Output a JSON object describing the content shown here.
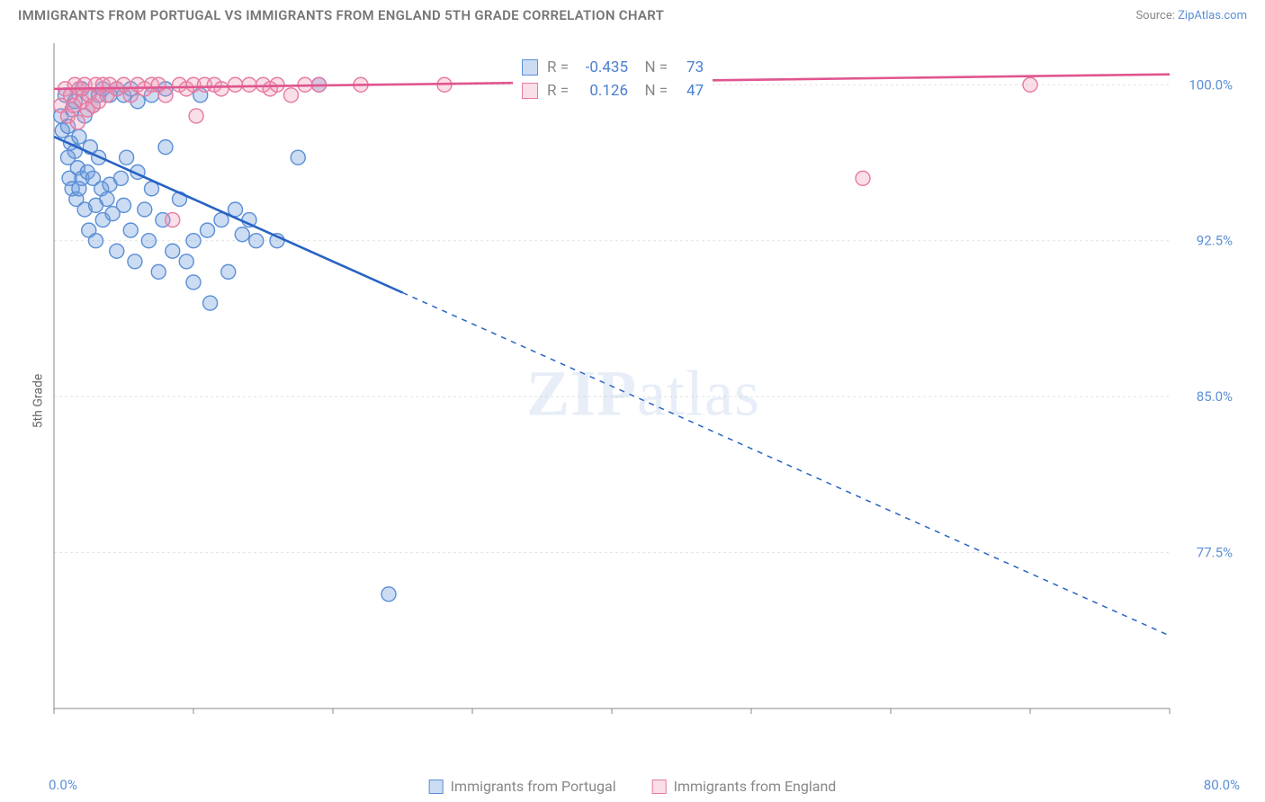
{
  "title": "IMMIGRANTS FROM PORTUGAL VS IMMIGRANTS FROM ENGLAND 5TH GRADE CORRELATION CHART",
  "source_label": "Source:",
  "source_site": "ZipAtlas.com",
  "ylabel": "5th Grade",
  "watermark": "ZIPatlas",
  "chart": {
    "type": "scatter-with-regression",
    "background_color": "#ffffff",
    "grid_color": "#e3e3e3",
    "axis_color": "#888888",
    "axis_label_color": "#5b8fd6",
    "xlim": [
      0,
      80
    ],
    "ylim": [
      70,
      102
    ],
    "xticks": [
      0,
      10,
      20,
      30,
      40,
      50,
      60,
      70,
      80
    ],
    "yticks": [
      77.5,
      85.0,
      92.5,
      100.0
    ],
    "xtick_labels_shown": {
      "0": "0.0%",
      "80": "80.0%"
    },
    "ytick_labels": [
      "77.5%",
      "85.0%",
      "92.5%",
      "100.0%"
    ],
    "marker_radius": 8,
    "marker_stroke_width": 1.4,
    "line_width": 2.6,
    "series": [
      {
        "name": "Immigrants from Portugal",
        "color_fill": "rgba(108,156,220,0.35)",
        "color_stroke": "#5b8fd6",
        "line_color": "#2763c4",
        "R": -0.435,
        "N": 73,
        "regression": {
          "x1": 0,
          "y1": 97.5,
          "x2_solid": 25,
          "y2_solid": 90,
          "x2": 80,
          "y2": 73.5
        },
        "points": [
          [
            0.5,
            98.5
          ],
          [
            0.6,
            97.8
          ],
          [
            0.8,
            99.5
          ],
          [
            1.0,
            98.0
          ],
          [
            1.0,
            96.5
          ],
          [
            1.1,
            95.5
          ],
          [
            1.2,
            97.2
          ],
          [
            1.3,
            95.0
          ],
          [
            1.3,
            98.8
          ],
          [
            1.5,
            96.8
          ],
          [
            1.5,
            99.2
          ],
          [
            1.6,
            94.5
          ],
          [
            1.7,
            96.0
          ],
          [
            1.8,
            95.0
          ],
          [
            1.8,
            97.5
          ],
          [
            2.0,
            99.8
          ],
          [
            2.0,
            95.5
          ],
          [
            2.2,
            94.0
          ],
          [
            2.2,
            98.5
          ],
          [
            2.4,
            95.8
          ],
          [
            2.5,
            99.5
          ],
          [
            2.5,
            93.0
          ],
          [
            2.6,
            97.0
          ],
          [
            2.8,
            95.5
          ],
          [
            2.8,
            99.0
          ],
          [
            3.0,
            94.2
          ],
          [
            3.0,
            92.5
          ],
          [
            3.2,
            96.5
          ],
          [
            3.2,
            99.5
          ],
          [
            3.4,
            95.0
          ],
          [
            3.5,
            93.5
          ],
          [
            3.5,
            99.8
          ],
          [
            3.8,
            94.5
          ],
          [
            4.0,
            95.2
          ],
          [
            4.0,
            99.5
          ],
          [
            4.2,
            93.8
          ],
          [
            4.5,
            92.0
          ],
          [
            4.5,
            99.8
          ],
          [
            4.8,
            95.5
          ],
          [
            5.0,
            94.2
          ],
          [
            5.0,
            99.5
          ],
          [
            5.2,
            96.5
          ],
          [
            5.5,
            93.0
          ],
          [
            5.5,
            99.8
          ],
          [
            5.8,
            91.5
          ],
          [
            6.0,
            95.8
          ],
          [
            6.0,
            99.2
          ],
          [
            6.5,
            94.0
          ],
          [
            6.8,
            92.5
          ],
          [
            7.0,
            95.0
          ],
          [
            7.0,
            99.5
          ],
          [
            7.5,
            91.0
          ],
          [
            7.8,
            93.5
          ],
          [
            8.0,
            97.0
          ],
          [
            8.0,
            99.8
          ],
          [
            8.5,
            92.0
          ],
          [
            9.0,
            94.5
          ],
          [
            9.5,
            91.5
          ],
          [
            10.0,
            92.5
          ],
          [
            10.0,
            90.5
          ],
          [
            10.5,
            99.5
          ],
          [
            11.0,
            93.0
          ],
          [
            11.2,
            89.5
          ],
          [
            12.0,
            93.5
          ],
          [
            12.5,
            91.0
          ],
          [
            13.0,
            94.0
          ],
          [
            13.5,
            92.8
          ],
          [
            14.0,
            93.5
          ],
          [
            14.5,
            92.5
          ],
          [
            16.0,
            92.5
          ],
          [
            17.5,
            96.5
          ],
          [
            19.0,
            100.0
          ],
          [
            24.0,
            75.5
          ]
        ]
      },
      {
        "name": "Immigrants from England",
        "color_fill": "rgba(240,150,180,0.30)",
        "color_stroke": "#e77aa0",
        "line_color": "#e05590",
        "R": 0.126,
        "N": 47,
        "regression": {
          "x1": 0,
          "y1": 99.8,
          "x2_solid": 80,
          "y2_solid": 100.5,
          "x2": 80,
          "y2": 100.5
        },
        "points": [
          [
            0.5,
            99.0
          ],
          [
            0.8,
            99.8
          ],
          [
            1.0,
            98.5
          ],
          [
            1.2,
            99.5
          ],
          [
            1.4,
            99.0
          ],
          [
            1.5,
            100.0
          ],
          [
            1.7,
            98.2
          ],
          [
            1.8,
            99.8
          ],
          [
            2.0,
            99.2
          ],
          [
            2.2,
            100.0
          ],
          [
            2.4,
            98.8
          ],
          [
            2.5,
            99.5
          ],
          [
            2.8,
            99.0
          ],
          [
            3.0,
            100.0
          ],
          [
            3.2,
            99.2
          ],
          [
            3.5,
            100.0
          ],
          [
            3.8,
            99.5
          ],
          [
            4.0,
            100.0
          ],
          [
            4.5,
            99.8
          ],
          [
            5.0,
            100.0
          ],
          [
            5.5,
            99.5
          ],
          [
            6.0,
            100.0
          ],
          [
            6.5,
            99.8
          ],
          [
            7.0,
            100.0
          ],
          [
            7.5,
            100.0
          ],
          [
            8.0,
            99.5
          ],
          [
            8.5,
            93.5
          ],
          [
            9.0,
            100.0
          ],
          [
            9.5,
            99.8
          ],
          [
            10.0,
            100.0
          ],
          [
            10.2,
            98.5
          ],
          [
            10.8,
            100.0
          ],
          [
            11.5,
            100.0
          ],
          [
            12.0,
            99.8
          ],
          [
            13.0,
            100.0
          ],
          [
            14.0,
            100.0
          ],
          [
            15.0,
            100.0
          ],
          [
            15.5,
            99.8
          ],
          [
            16.0,
            100.0
          ],
          [
            17.0,
            99.5
          ],
          [
            18.0,
            100.0
          ],
          [
            19.0,
            100.0
          ],
          [
            22.0,
            100.0
          ],
          [
            28.0,
            100.0
          ],
          [
            34.0,
            100.0
          ],
          [
            58.0,
            95.5
          ],
          [
            70.0,
            100.0
          ]
        ]
      }
    ]
  },
  "legend_bottom": [
    {
      "label": "Immigrants from Portugal",
      "swatch_fill": "rgba(108,156,220,0.35)",
      "swatch_stroke": "#5b8fd6"
    },
    {
      "label": "Immigrants from England",
      "swatch_fill": "rgba(240,150,180,0.30)",
      "swatch_stroke": "#e77aa0"
    }
  ]
}
